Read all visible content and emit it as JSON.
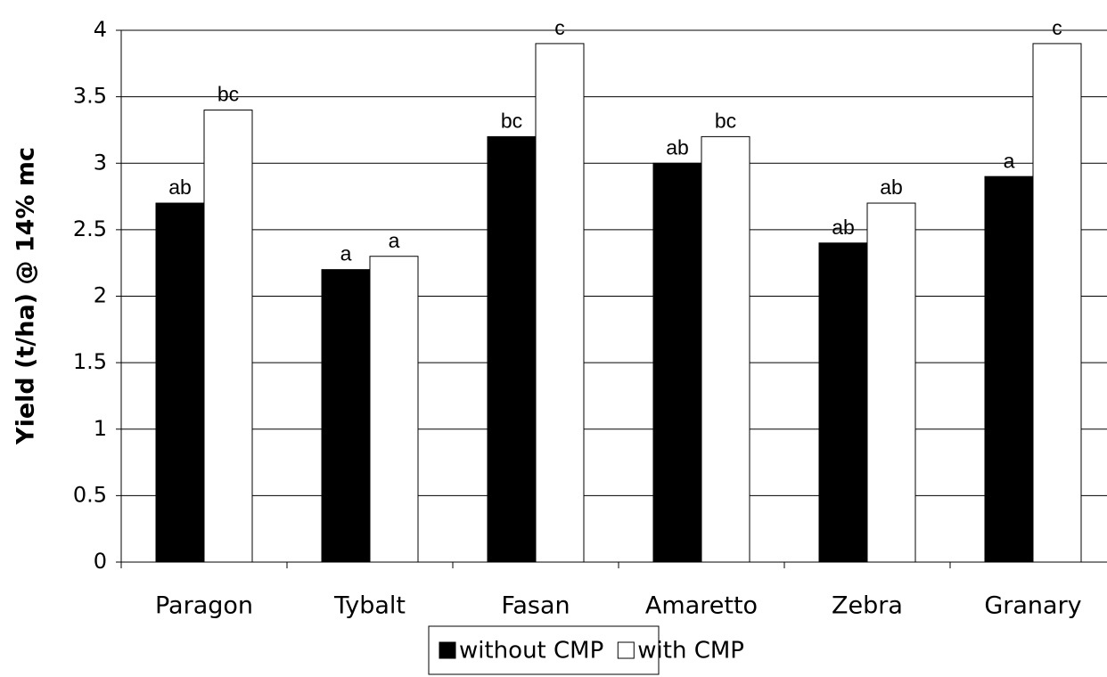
{
  "chart_data": {
    "type": "bar",
    "y_label": "Yield (t/ha) @ 14% mc",
    "categories": [
      "Paragon",
      "Tybalt",
      "Fasan",
      "Amaretto",
      "Zebra",
      "Granary"
    ],
    "series": [
      {
        "name": "without CMP",
        "color": "#000000",
        "values": [
          2.7,
          2.2,
          3.2,
          3.0,
          2.4,
          2.9
        ],
        "annotations": [
          "ab",
          "a",
          "bc",
          "ab",
          "ab",
          "a"
        ]
      },
      {
        "name": "with CMP",
        "color": "#ffffff",
        "values": [
          3.4,
          2.3,
          3.9,
          3.2,
          2.7,
          3.9
        ],
        "annotations": [
          "bc",
          "a",
          "c",
          "bc",
          "ab",
          "c"
        ]
      }
    ],
    "ylim": [
      0,
      4
    ],
    "yticks": [
      0,
      0.5,
      1,
      1.5,
      2,
      2.5,
      3,
      3.5,
      4
    ],
    "grid": true,
    "legend": "bottom"
  }
}
